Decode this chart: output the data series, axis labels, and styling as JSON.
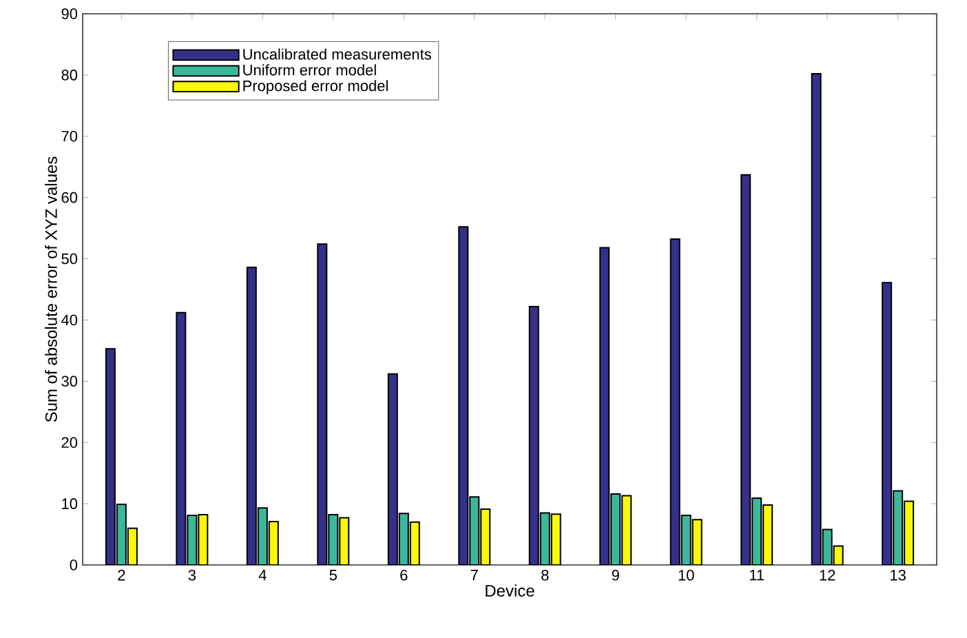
{
  "chart_data": {
    "type": "bar",
    "xlabel": "Device",
    "ylabel": "Sum of absolute error of XYZ values",
    "categories": [
      "2",
      "3",
      "4",
      "5",
      "6",
      "7",
      "8",
      "9",
      "10",
      "11",
      "12",
      "13"
    ],
    "series": [
      {
        "name": "Uncalibrated measurements",
        "color": "#35308a",
        "values": [
          35.3,
          41.2,
          48.6,
          52.4,
          31.2,
          55.2,
          42.2,
          51.8,
          53.2,
          63.7,
          80.2,
          46.1
        ]
      },
      {
        "name": "Uniform error model",
        "color": "#3bb89c",
        "values": [
          9.9,
          8.1,
          9.3,
          8.2,
          8.4,
          11.1,
          8.5,
          11.6,
          8.1,
          10.9,
          5.8,
          12.1
        ]
      },
      {
        "name": "Proposed error model",
        "color": "#f8f80a",
        "values": [
          6.0,
          8.2,
          7.1,
          7.7,
          7.0,
          9.1,
          8.3,
          11.3,
          7.4,
          9.8,
          3.1,
          10.4
        ]
      }
    ],
    "ylim": [
      0,
      90
    ],
    "yticks": [
      0,
      10,
      20,
      30,
      40,
      50,
      60,
      70,
      80,
      90
    ],
    "grid": false,
    "legend": "top left"
  }
}
